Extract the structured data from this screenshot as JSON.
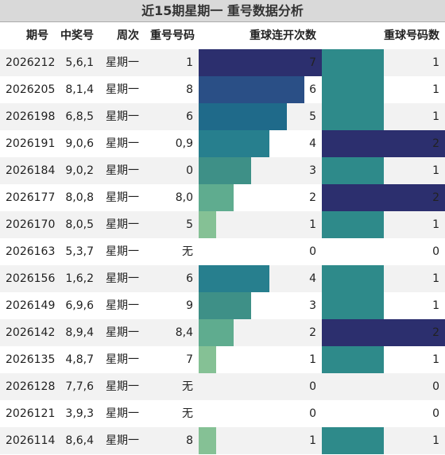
{
  "header": {
    "title": "近15期星期一 重号数据分析"
  },
  "table": {
    "columns": [
      "期号",
      "中奖号",
      "周次",
      "重号号码",
      "重球连开次数",
      "重球号码数"
    ],
    "bar_colors": {
      "4": [
        "#85c195",
        "#5fac8f",
        "#3e9087",
        "#277f8e",
        "#1f6a8a",
        "#2a4f86",
        "#2c2f6e"
      ],
      "5": [
        "#2e8a8a",
        "#2c2f6e"
      ]
    },
    "rows": [
      [
        "2026212",
        "5,6,1",
        "星期一",
        "1",
        7,
        1
      ],
      [
        "2026205",
        "8,1,4",
        "星期一",
        "8",
        6,
        1
      ],
      [
        "2026198",
        "6,8,5",
        "星期一",
        "6",
        5,
        1
      ],
      [
        "2026191",
        "9,0,6",
        "星期一",
        "0,9",
        4,
        2
      ],
      [
        "2026184",
        "9,0,2",
        "星期一",
        "0",
        3,
        1
      ],
      [
        "2026177",
        "8,0,8",
        "星期一",
        "8,0",
        2,
        2
      ],
      [
        "2026170",
        "8,0,5",
        "星期一",
        "5",
        1,
        1
      ],
      [
        "2026163",
        "5,3,7",
        "星期一",
        "无",
        0,
        0
      ],
      [
        "2026156",
        "1,6,2",
        "星期一",
        "6",
        4,
        1
      ],
      [
        "2026149",
        "6,9,6",
        "星期一",
        "9",
        3,
        1
      ],
      [
        "2026142",
        "8,9,4",
        "星期一",
        "8,4",
        2,
        2
      ],
      [
        "2026135",
        "4,8,7",
        "星期一",
        "7",
        1,
        1
      ],
      [
        "2026128",
        "7,7,6",
        "星期一",
        "无",
        0,
        0
      ],
      [
        "2026121",
        "3,9,3",
        "星期一",
        "无",
        0,
        0
      ],
      [
        "2026114",
        "8,6,4",
        "星期一",
        "8",
        1,
        1
      ]
    ]
  }
}
